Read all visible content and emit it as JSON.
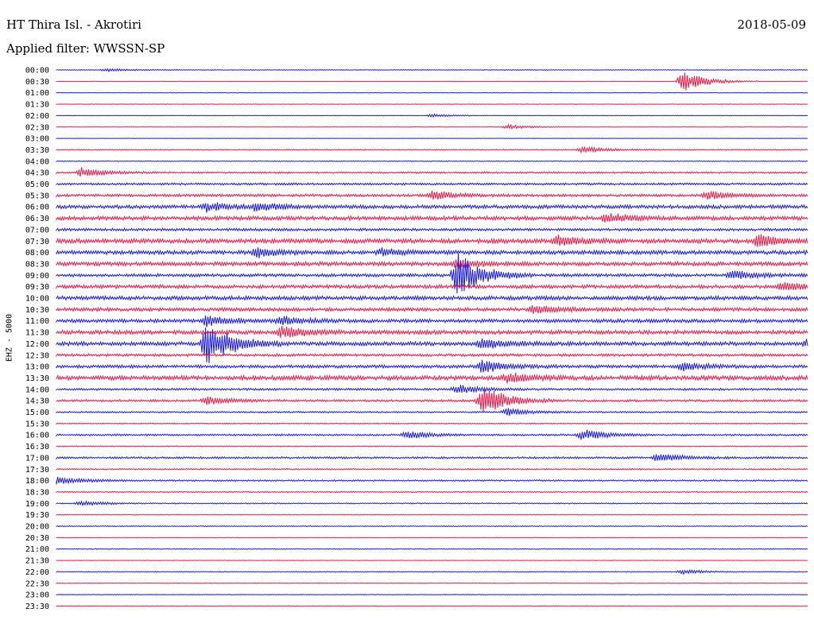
{
  "header": {
    "station": "HT Thira Isl. - Akrotiri",
    "date": "2018-05-09",
    "filter": "Applied filter: WWSSN-SP"
  },
  "side_label": "EHZ - 5000",
  "colors": {
    "blue": "#1a1aee",
    "red": "#ee1a4a"
  },
  "chart_data": {
    "type": "line",
    "title": "HT Thira Isl. - Akrotiri",
    "ylabel": "EHZ - 5000",
    "xlabel": "",
    "grid": false,
    "legend": "none",
    "row_labels": [
      "00:00",
      "00:30",
      "01:00",
      "01:30",
      "02:00",
      "02:30",
      "03:00",
      "03:30",
      "04:00",
      "04:30",
      "05:00",
      "05:30",
      "06:00",
      "06:30",
      "07:00",
      "07:30",
      "08:00",
      "08:30",
      "09:00",
      "09:30",
      "10:00",
      "10:30",
      "11:00",
      "11:30",
      "12:00",
      "12:30",
      "13:00",
      "13:30",
      "14:00",
      "14:30",
      "15:00",
      "15:30",
      "16:00",
      "16:30",
      "17:00",
      "17:30",
      "18:00",
      "18:30",
      "19:00",
      "19:30",
      "20:00",
      "20:30",
      "21:00",
      "21:30",
      "22:00",
      "22:30",
      "23:00",
      "23:30"
    ],
    "row_noise_level": [
      0.3,
      0.15,
      0.2,
      0.2,
      0.2,
      0.2,
      0.15,
      0.5,
      0.4,
      0.8,
      1.0,
      1.2,
      1.6,
      1.8,
      1.2,
      2.0,
      1.8,
      1.8,
      1.4,
      1.6,
      1.8,
      1.6,
      1.6,
      1.8,
      1.8,
      1.2,
      1.4,
      2.0,
      1.0,
      1.0,
      0.7,
      0.5,
      0.8,
      0.4,
      0.9,
      0.6,
      0.7,
      0.5,
      0.5,
      0.3,
      0.4,
      0.2,
      0.4,
      0.2,
      0.4,
      0.3,
      0.3,
      0.3
    ],
    "events": [
      {
        "row": 0,
        "minute": 2,
        "amp": 2
      },
      {
        "row": 1,
        "minute": 25,
        "amp": 14
      },
      {
        "row": 4,
        "minute": 15,
        "amp": 2
      },
      {
        "row": 5,
        "minute": 18,
        "amp": 3
      },
      {
        "row": 7,
        "minute": 21,
        "amp": 4
      },
      {
        "row": 9,
        "minute": 1,
        "amp": 6
      },
      {
        "row": 11,
        "minute": 15,
        "amp": 6
      },
      {
        "row": 11,
        "minute": 26,
        "amp": 6
      },
      {
        "row": 12,
        "minute": 6,
        "amp": 6
      },
      {
        "row": 12,
        "minute": 8,
        "amp": 5
      },
      {
        "row": 13,
        "minute": 22,
        "amp": 6
      },
      {
        "row": 15,
        "minute": 20,
        "amp": 6
      },
      {
        "row": 15,
        "minute": 28,
        "amp": 8
      },
      {
        "row": 16,
        "minute": 8,
        "amp": 6
      },
      {
        "row": 16,
        "minute": 13,
        "amp": 5
      },
      {
        "row": 17,
        "minute": 16,
        "amp": 5
      },
      {
        "row": 18,
        "minute": 16,
        "amp": 30
      },
      {
        "row": 18,
        "minute": 27,
        "amp": 6
      },
      {
        "row": 19,
        "minute": 29,
        "amp": 5
      },
      {
        "row": 21,
        "minute": 19,
        "amp": 5
      },
      {
        "row": 22,
        "minute": 6,
        "amp": 6
      },
      {
        "row": 22,
        "minute": 9,
        "amp": 5
      },
      {
        "row": 23,
        "minute": 9,
        "amp": 8
      },
      {
        "row": 24,
        "minute": 6,
        "amp": 30
      },
      {
        "row": 24,
        "minute": 17,
        "amp": 6
      },
      {
        "row": 24,
        "minute": 30,
        "amp": 6
      },
      {
        "row": 26,
        "minute": 17,
        "amp": 8
      },
      {
        "row": 26,
        "minute": 25,
        "amp": 5
      },
      {
        "row": 27,
        "minute": 18,
        "amp": 6
      },
      {
        "row": 28,
        "minute": 16,
        "amp": 6
      },
      {
        "row": 29,
        "minute": 6,
        "amp": 5
      },
      {
        "row": 29,
        "minute": 17,
        "amp": 20
      },
      {
        "row": 30,
        "minute": 18,
        "amp": 5
      },
      {
        "row": 32,
        "minute": 14,
        "amp": 5
      },
      {
        "row": 32,
        "minute": 21,
        "amp": 7
      },
      {
        "row": 34,
        "minute": 24,
        "amp": 6
      },
      {
        "row": 36,
        "minute": 0,
        "amp": 6
      },
      {
        "row": 38,
        "minute": 1,
        "amp": 3
      },
      {
        "row": 44,
        "minute": 25,
        "amp": 3
      }
    ]
  }
}
